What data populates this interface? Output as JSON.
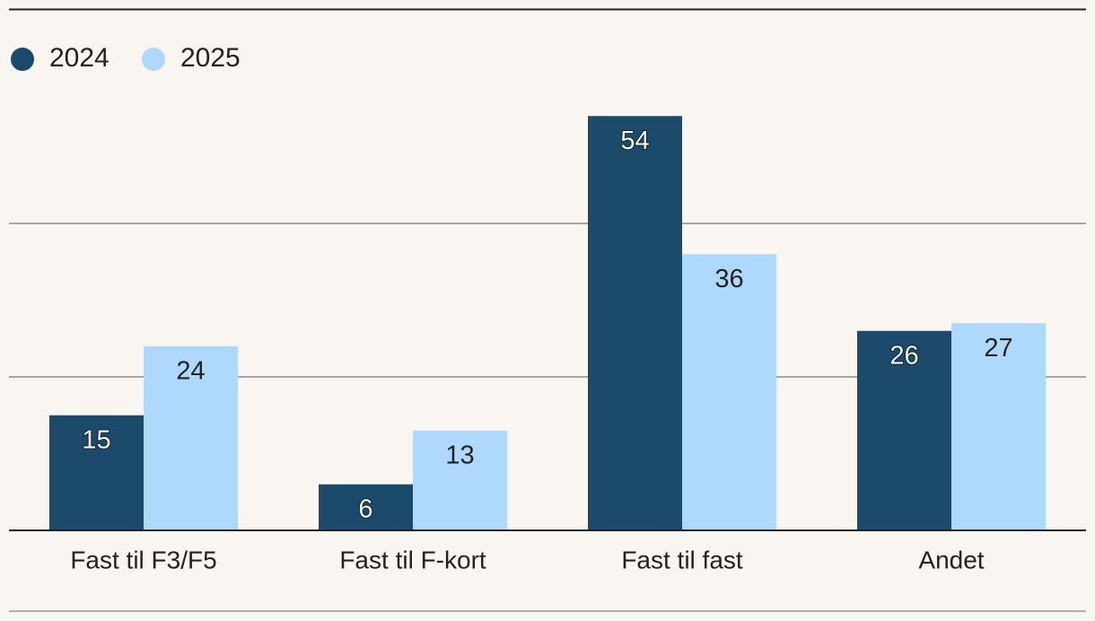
{
  "chart_data": {
    "type": "bar",
    "categories": [
      "Fast til F3/F5",
      "Fast til F-kort",
      "Fast til fast",
      "Andet"
    ],
    "series": [
      {
        "name": "2024",
        "color": "#1b4a6b",
        "values": [
          15,
          6,
          54,
          26
        ]
      },
      {
        "name": "2025",
        "color": "#aed9fc",
        "values": [
          24,
          13,
          36,
          27
        ]
      }
    ],
    "ylim": [
      0,
      60
    ],
    "yticks": [
      0,
      20,
      40
    ],
    "grid": true,
    "legend": "top-left"
  }
}
